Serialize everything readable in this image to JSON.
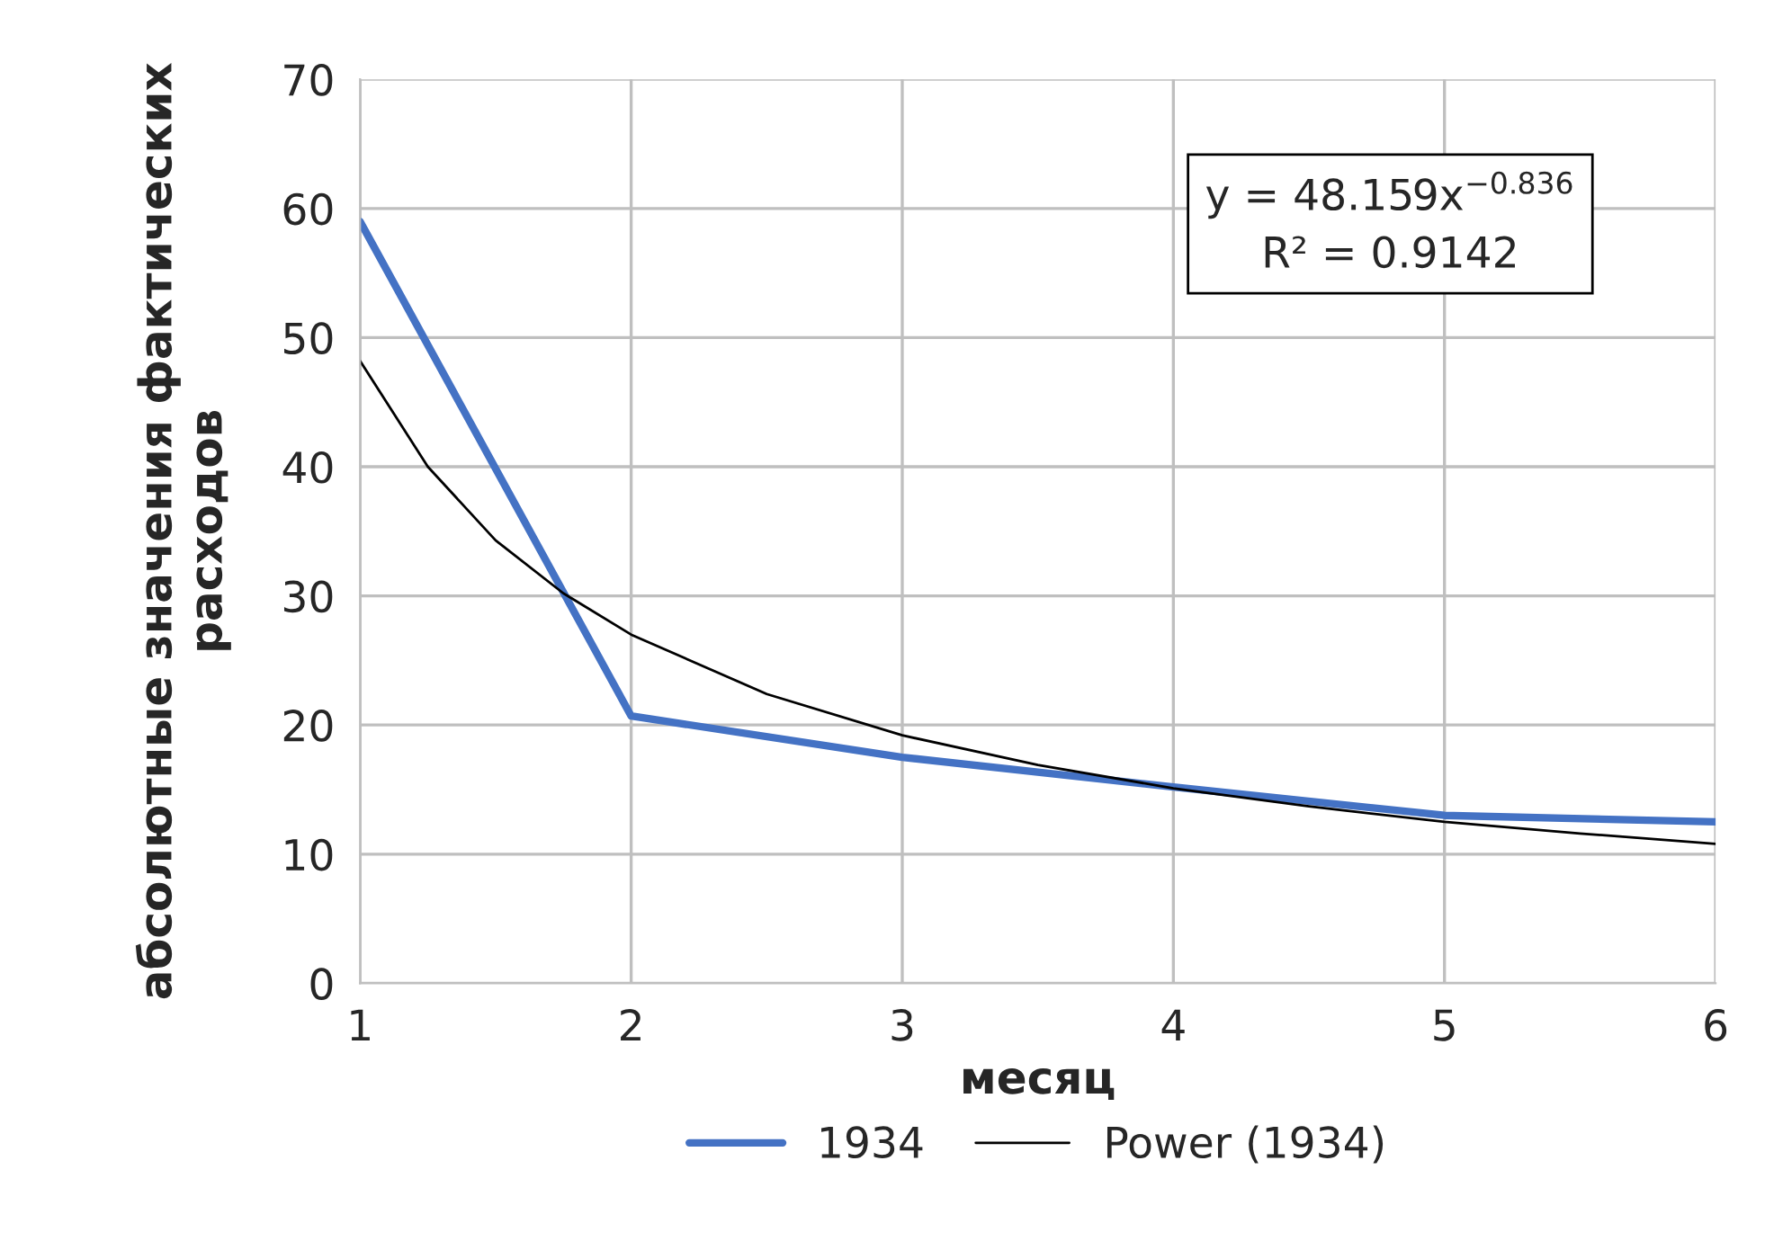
{
  "chart_data": {
    "type": "line",
    "xlabel": "месяц",
    "ylabel": "абсолютные значения фактических\nрасходов",
    "xlim": [
      1,
      6
    ],
    "xticks": [
      1,
      2,
      3,
      4,
      5,
      6
    ],
    "ylim": [
      0,
      70
    ],
    "yticks": [
      0,
      10,
      20,
      30,
      40,
      50,
      60,
      70
    ],
    "grid": true,
    "legend": "bottom",
    "marker": "none",
    "line_style": "solid",
    "series": [
      {
        "name": "1934",
        "color": "#4472c4",
        "x": [
          1,
          2,
          3,
          4,
          5,
          6
        ],
        "values": [
          59,
          20.7,
          17.5,
          15.2,
          13.0,
          12.5
        ]
      },
      {
        "name": "Power (1934)",
        "color": "#000000",
        "x": [
          1,
          1.25,
          1.5,
          1.75,
          2,
          2.5,
          3,
          3.5,
          4,
          4.5,
          5,
          5.5,
          6
        ],
        "values": [
          48.2,
          40.0,
          34.3,
          30.2,
          27.0,
          22.4,
          19.2,
          16.9,
          15.1,
          13.7,
          12.5,
          11.6,
          10.8
        ]
      }
    ],
    "annotations": [
      "y = 48.159x$^{−0.836}$\nR² = 0.9142"
    ]
  }
}
